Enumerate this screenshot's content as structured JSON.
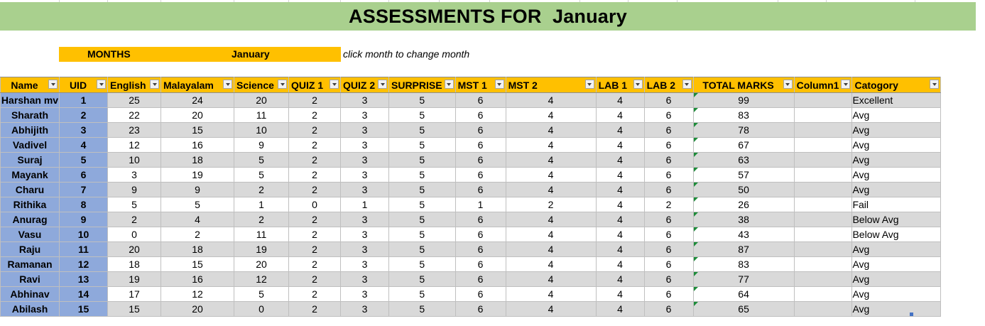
{
  "sheet": {
    "title": "ASSESSMENTS FOR  January",
    "months_label": "MONTHS",
    "month_value": "January",
    "hint": "click month to change month"
  },
  "table": {
    "headers": [
      "Name",
      "UID",
      "English",
      "Malayalam",
      "Science",
      "QUIZ 1",
      "QUIZ 2",
      "SURPRISE",
      "MST 1",
      "MST 2",
      "LAB 1",
      "LAB 2",
      "TOTAL MARKS",
      "Column1",
      "Catogory"
    ],
    "rows": [
      [
        "Harshan mv",
        "1",
        "25",
        "24",
        "20",
        "2",
        "3",
        "5",
        "6",
        "4",
        "4",
        "6",
        "99",
        "",
        "Excellent"
      ],
      [
        "Sharath",
        "2",
        "22",
        "20",
        "11",
        "2",
        "3",
        "5",
        "6",
        "4",
        "4",
        "6",
        "83",
        "",
        "Avg"
      ],
      [
        "Abhijith",
        "3",
        "23",
        "15",
        "10",
        "2",
        "3",
        "5",
        "6",
        "4",
        "4",
        "6",
        "78",
        "",
        "Avg"
      ],
      [
        "Vadivel",
        "4",
        "12",
        "16",
        "9",
        "2",
        "3",
        "5",
        "6",
        "4",
        "4",
        "6",
        "67",
        "",
        "Avg"
      ],
      [
        "Suraj",
        "5",
        "10",
        "18",
        "5",
        "2",
        "3",
        "5",
        "6",
        "4",
        "4",
        "6",
        "63",
        "",
        "Avg"
      ],
      [
        "Mayank",
        "6",
        "3",
        "19",
        "5",
        "2",
        "3",
        "5",
        "6",
        "4",
        "4",
        "6",
        "57",
        "",
        "Avg"
      ],
      [
        "Charu",
        "7",
        "9",
        "9",
        "2",
        "2",
        "3",
        "5",
        "6",
        "4",
        "4",
        "6",
        "50",
        "",
        "Avg"
      ],
      [
        "Rithika",
        "8",
        "5",
        "5",
        "1",
        "0",
        "1",
        "5",
        "1",
        "2",
        "4",
        "2",
        "26",
        "",
        "Fail"
      ],
      [
        "Anurag",
        "9",
        "2",
        "4",
        "2",
        "2",
        "3",
        "5",
        "6",
        "4",
        "4",
        "6",
        "38",
        "",
        "Below Avg"
      ],
      [
        "Vasu",
        "10",
        "0",
        "2",
        "11",
        "2",
        "3",
        "5",
        "6",
        "4",
        "4",
        "6",
        "43",
        "",
        "Below Avg"
      ],
      [
        "Raju",
        "11",
        "20",
        "18",
        "19",
        "2",
        "3",
        "5",
        "6",
        "4",
        "4",
        "6",
        "87",
        "",
        "Avg"
      ],
      [
        "Ramanan",
        "12",
        "18",
        "15",
        "20",
        "2",
        "3",
        "5",
        "6",
        "4",
        "4",
        "6",
        "83",
        "",
        "Avg"
      ],
      [
        "Ravi",
        "13",
        "19",
        "16",
        "12",
        "2",
        "3",
        "5",
        "6",
        "4",
        "4",
        "6",
        "77",
        "",
        "Avg"
      ],
      [
        "Abhinav",
        "14",
        "17",
        "12",
        "5",
        "2",
        "3",
        "5",
        "6",
        "4",
        "4",
        "6",
        "64",
        "",
        "Avg"
      ],
      [
        "Abilash",
        "15",
        "15",
        "20",
        "0",
        "2",
        "3",
        "5",
        "6",
        "4",
        "4",
        "6",
        "65",
        "",
        "Avg"
      ]
    ]
  },
  "colors": {
    "title_band": "#a9d08e",
    "header_fill": "#ffc000",
    "name_fill": "#8ea9db",
    "band_fill": "#d9d9d9"
  }
}
